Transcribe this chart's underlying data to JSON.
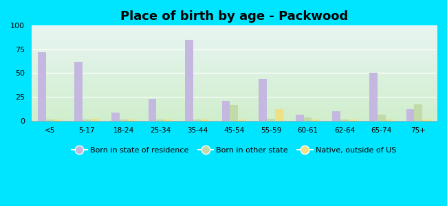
{
  "title": "Place of birth by age - Packwood",
  "categories": [
    "<5",
    "5-17",
    "18-24",
    "25-34",
    "35-44",
    "45-54",
    "55-59",
    "60-61",
    "62-64",
    "65-74",
    "75+"
  ],
  "born_in_state": [
    72,
    62,
    8,
    23,
    85,
    21,
    44,
    6,
    10,
    50,
    12
  ],
  "born_other_state": [
    1,
    1,
    1,
    1,
    1,
    16,
    2,
    3,
    1,
    6,
    17
  ],
  "native_outside_us": [
    1,
    2,
    1,
    1,
    1,
    1,
    12,
    1,
    1,
    1,
    1
  ],
  "color_state": "#c5b8e0",
  "color_other": "#c2d9a8",
  "color_native": "#ede085",
  "ylim": [
    0,
    100
  ],
  "yticks": [
    0,
    25,
    50,
    75,
    100
  ],
  "bg_top": "#e8f5f2",
  "bg_bottom": "#d0eecc",
  "outer_bg": "#00e5ff",
  "legend_labels": [
    "Born in state of residence",
    "Born in other state",
    "Native, outside of US"
  ],
  "bar_width": 0.22
}
